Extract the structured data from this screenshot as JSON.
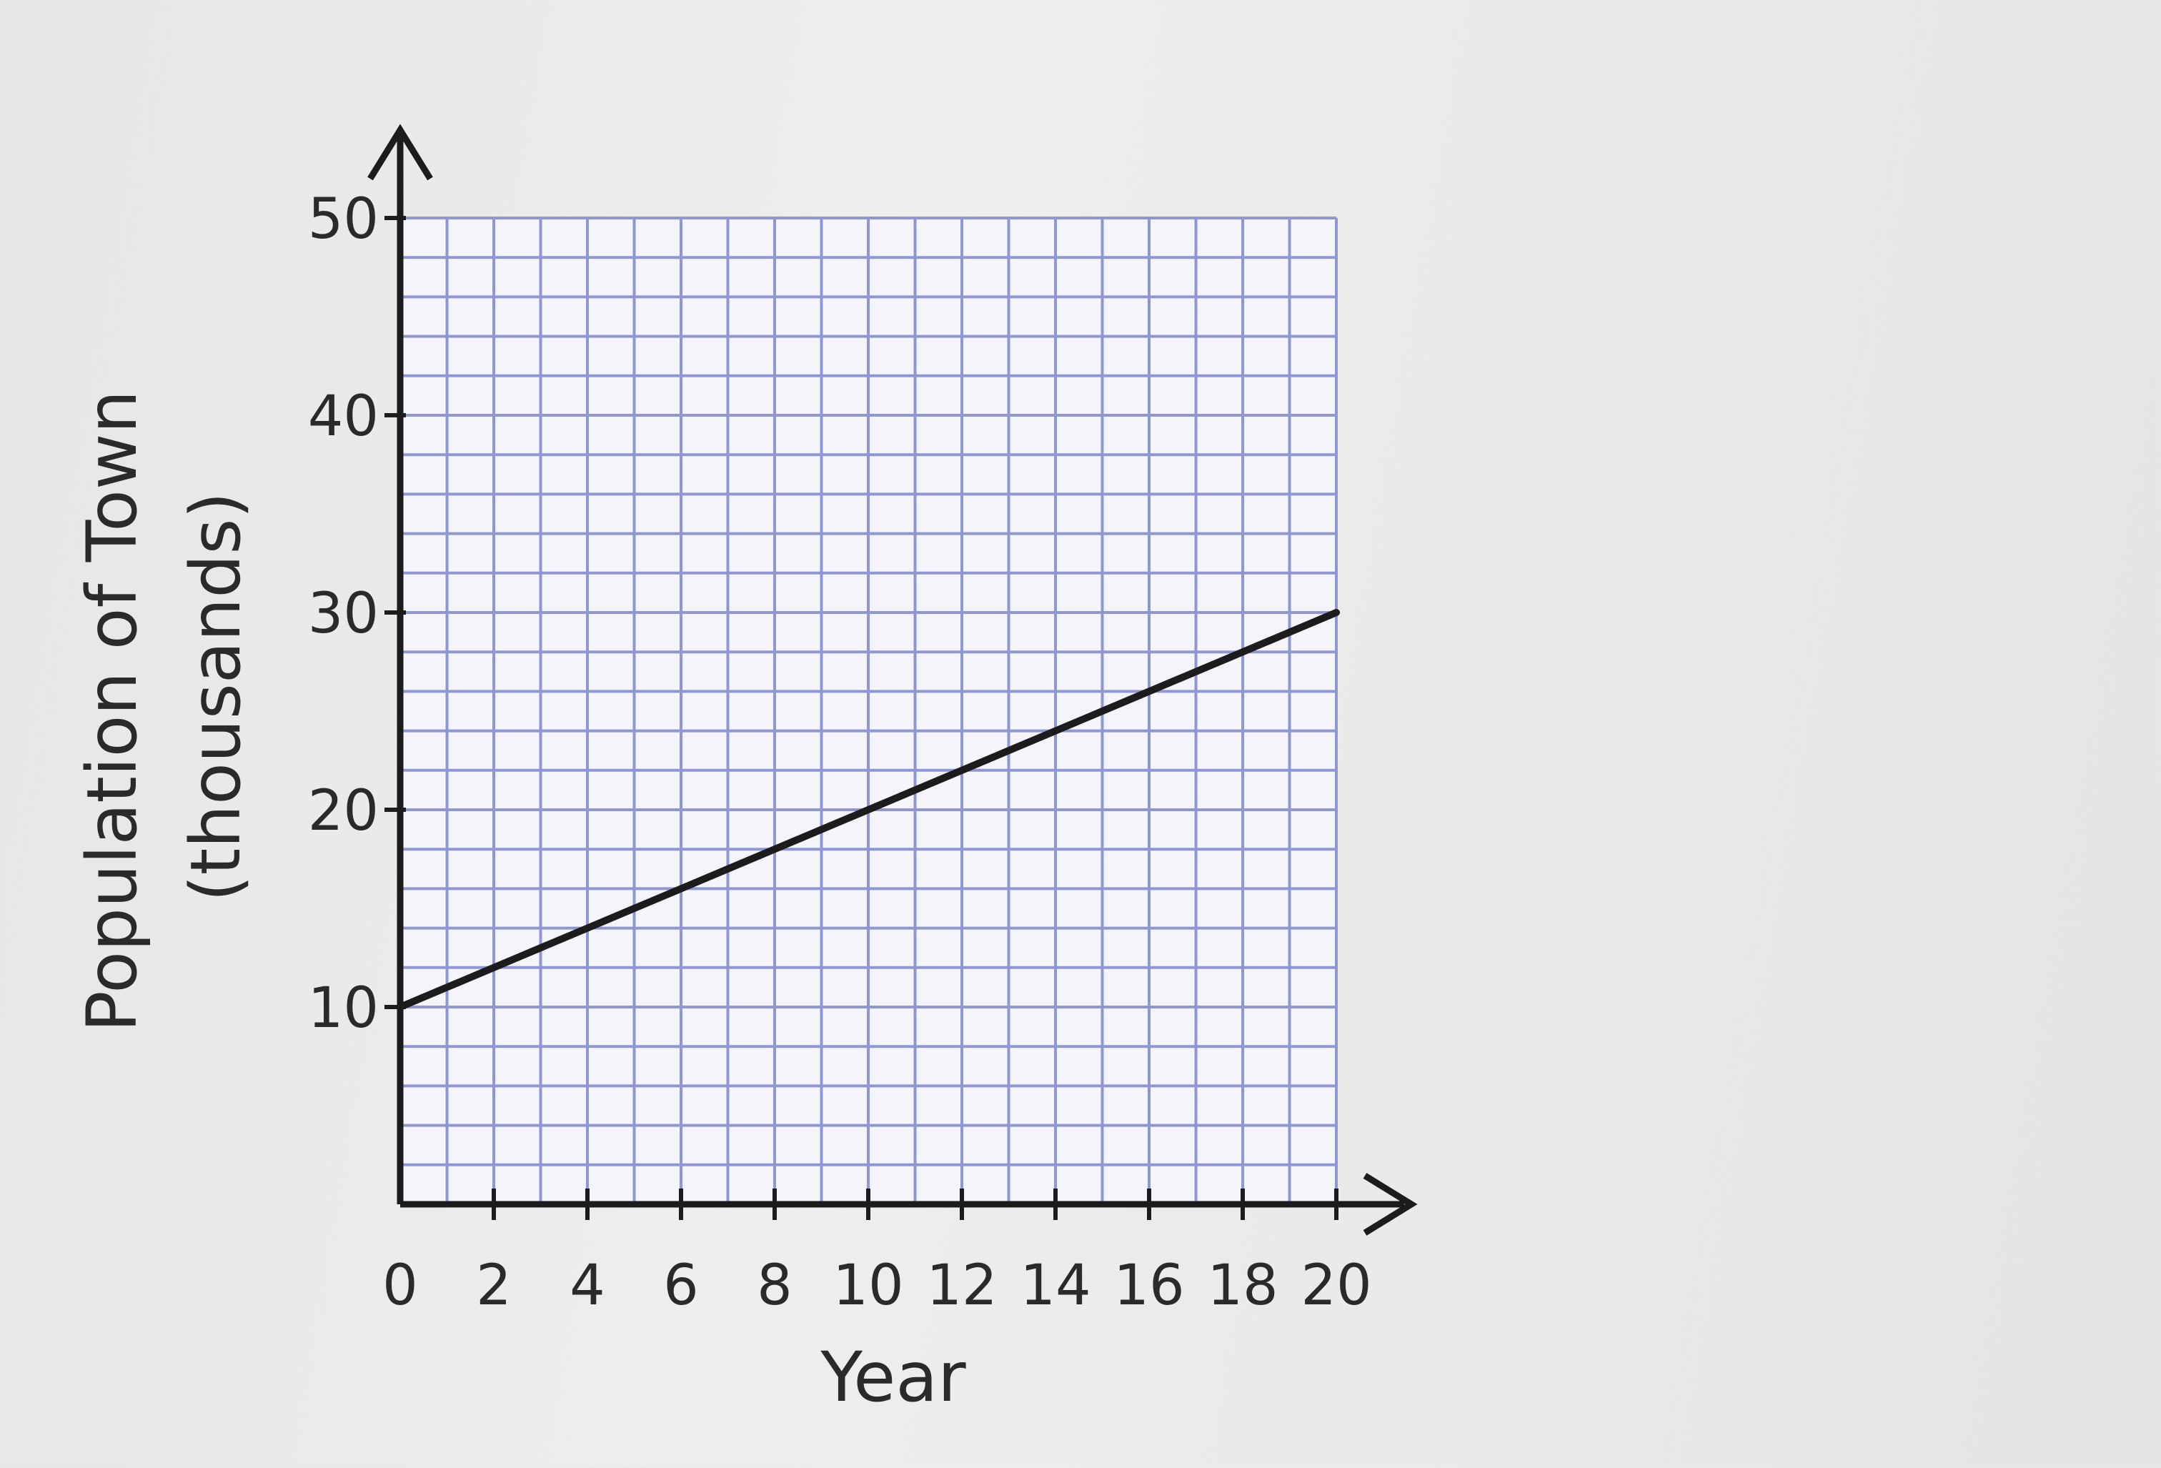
{
  "chart_data": {
    "type": "line",
    "title": "",
    "xlabel": "Year",
    "ylabel_line1": "Population of Town",
    "ylabel_line2": "(thousands)",
    "xlim": [
      0,
      20
    ],
    "ylim": [
      0,
      50
    ],
    "x_ticks": [
      "0",
      "2",
      "4",
      "6",
      "8",
      "10",
      "12",
      "14",
      "16",
      "18",
      "20"
    ],
    "y_ticks": [
      "10",
      "20",
      "30",
      "40",
      "50"
    ],
    "x_tick_values": [
      0,
      2,
      4,
      6,
      8,
      10,
      12,
      14,
      16,
      18,
      20
    ],
    "y_tick_values": [
      10,
      20,
      30,
      40,
      50
    ],
    "grid": true,
    "grid_minor_step": {
      "x": 1,
      "y": 2
    },
    "series": [
      {
        "x": [
          0,
          20
        ],
        "y": [
          10,
          30
        ]
      }
    ],
    "colors": {
      "line": "#1c1c1c",
      "axis": "#1c1c1c",
      "grid": "#8f96d4",
      "plot_bg": "#f4f4fa"
    }
  }
}
